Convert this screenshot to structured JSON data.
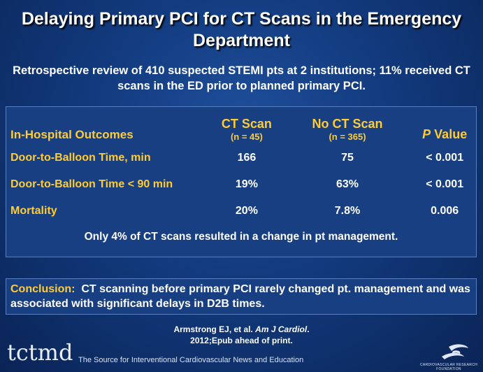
{
  "title": "Delaying Primary PCI for CT Scans in the Emergency Department",
  "subtitle": "Retrospective review of 410 suspected STEMI pts at 2 institutions; 11% received CT scans in the ED prior to planned primary PCI.",
  "table": {
    "header": {
      "outcomes": "In-Hospital Outcomes",
      "ct_scan": "CT Scan",
      "ct_scan_n": "(n = 45)",
      "no_ct_scan": "No CT Scan",
      "no_ct_scan_n": "(n = 365)",
      "p_italic": "P",
      "p_rest": " Value"
    },
    "rows": [
      {
        "label": "Door-to-Balloon Time, min",
        "ct": "166",
        "no_ct": "75",
        "p": "< 0.001"
      },
      {
        "label": "Door-to-Balloon Time < 90 min",
        "ct": "19%",
        "no_ct": "63%",
        "p": "< 0.001"
      },
      {
        "label": "Mortality",
        "ct": "20%",
        "no_ct": "7.8%",
        "p": "0.006"
      }
    ],
    "note": "Only 4% of CT scans resulted in a change in pt management."
  },
  "conclusion": {
    "label": "Conclusion:",
    "text": "CT scanning before primary PCI rarely changed pt. management and was associated with significant delays in D2B times."
  },
  "citation": {
    "authors": "Armstrong EJ, et al. ",
    "journal": "Am J Cardiol",
    "end": ".",
    "line2": "2012;Epub ahead of print."
  },
  "footer": {
    "logo": "tctmd",
    "tagline": "The Source for Interventional Cardiovascular News and Education",
    "crf_text": "CARDIOVASCULAR RESEARCH FOUNDATION"
  },
  "colors": {
    "accent": "#ffcc33",
    "background": "#123a7d"
  }
}
